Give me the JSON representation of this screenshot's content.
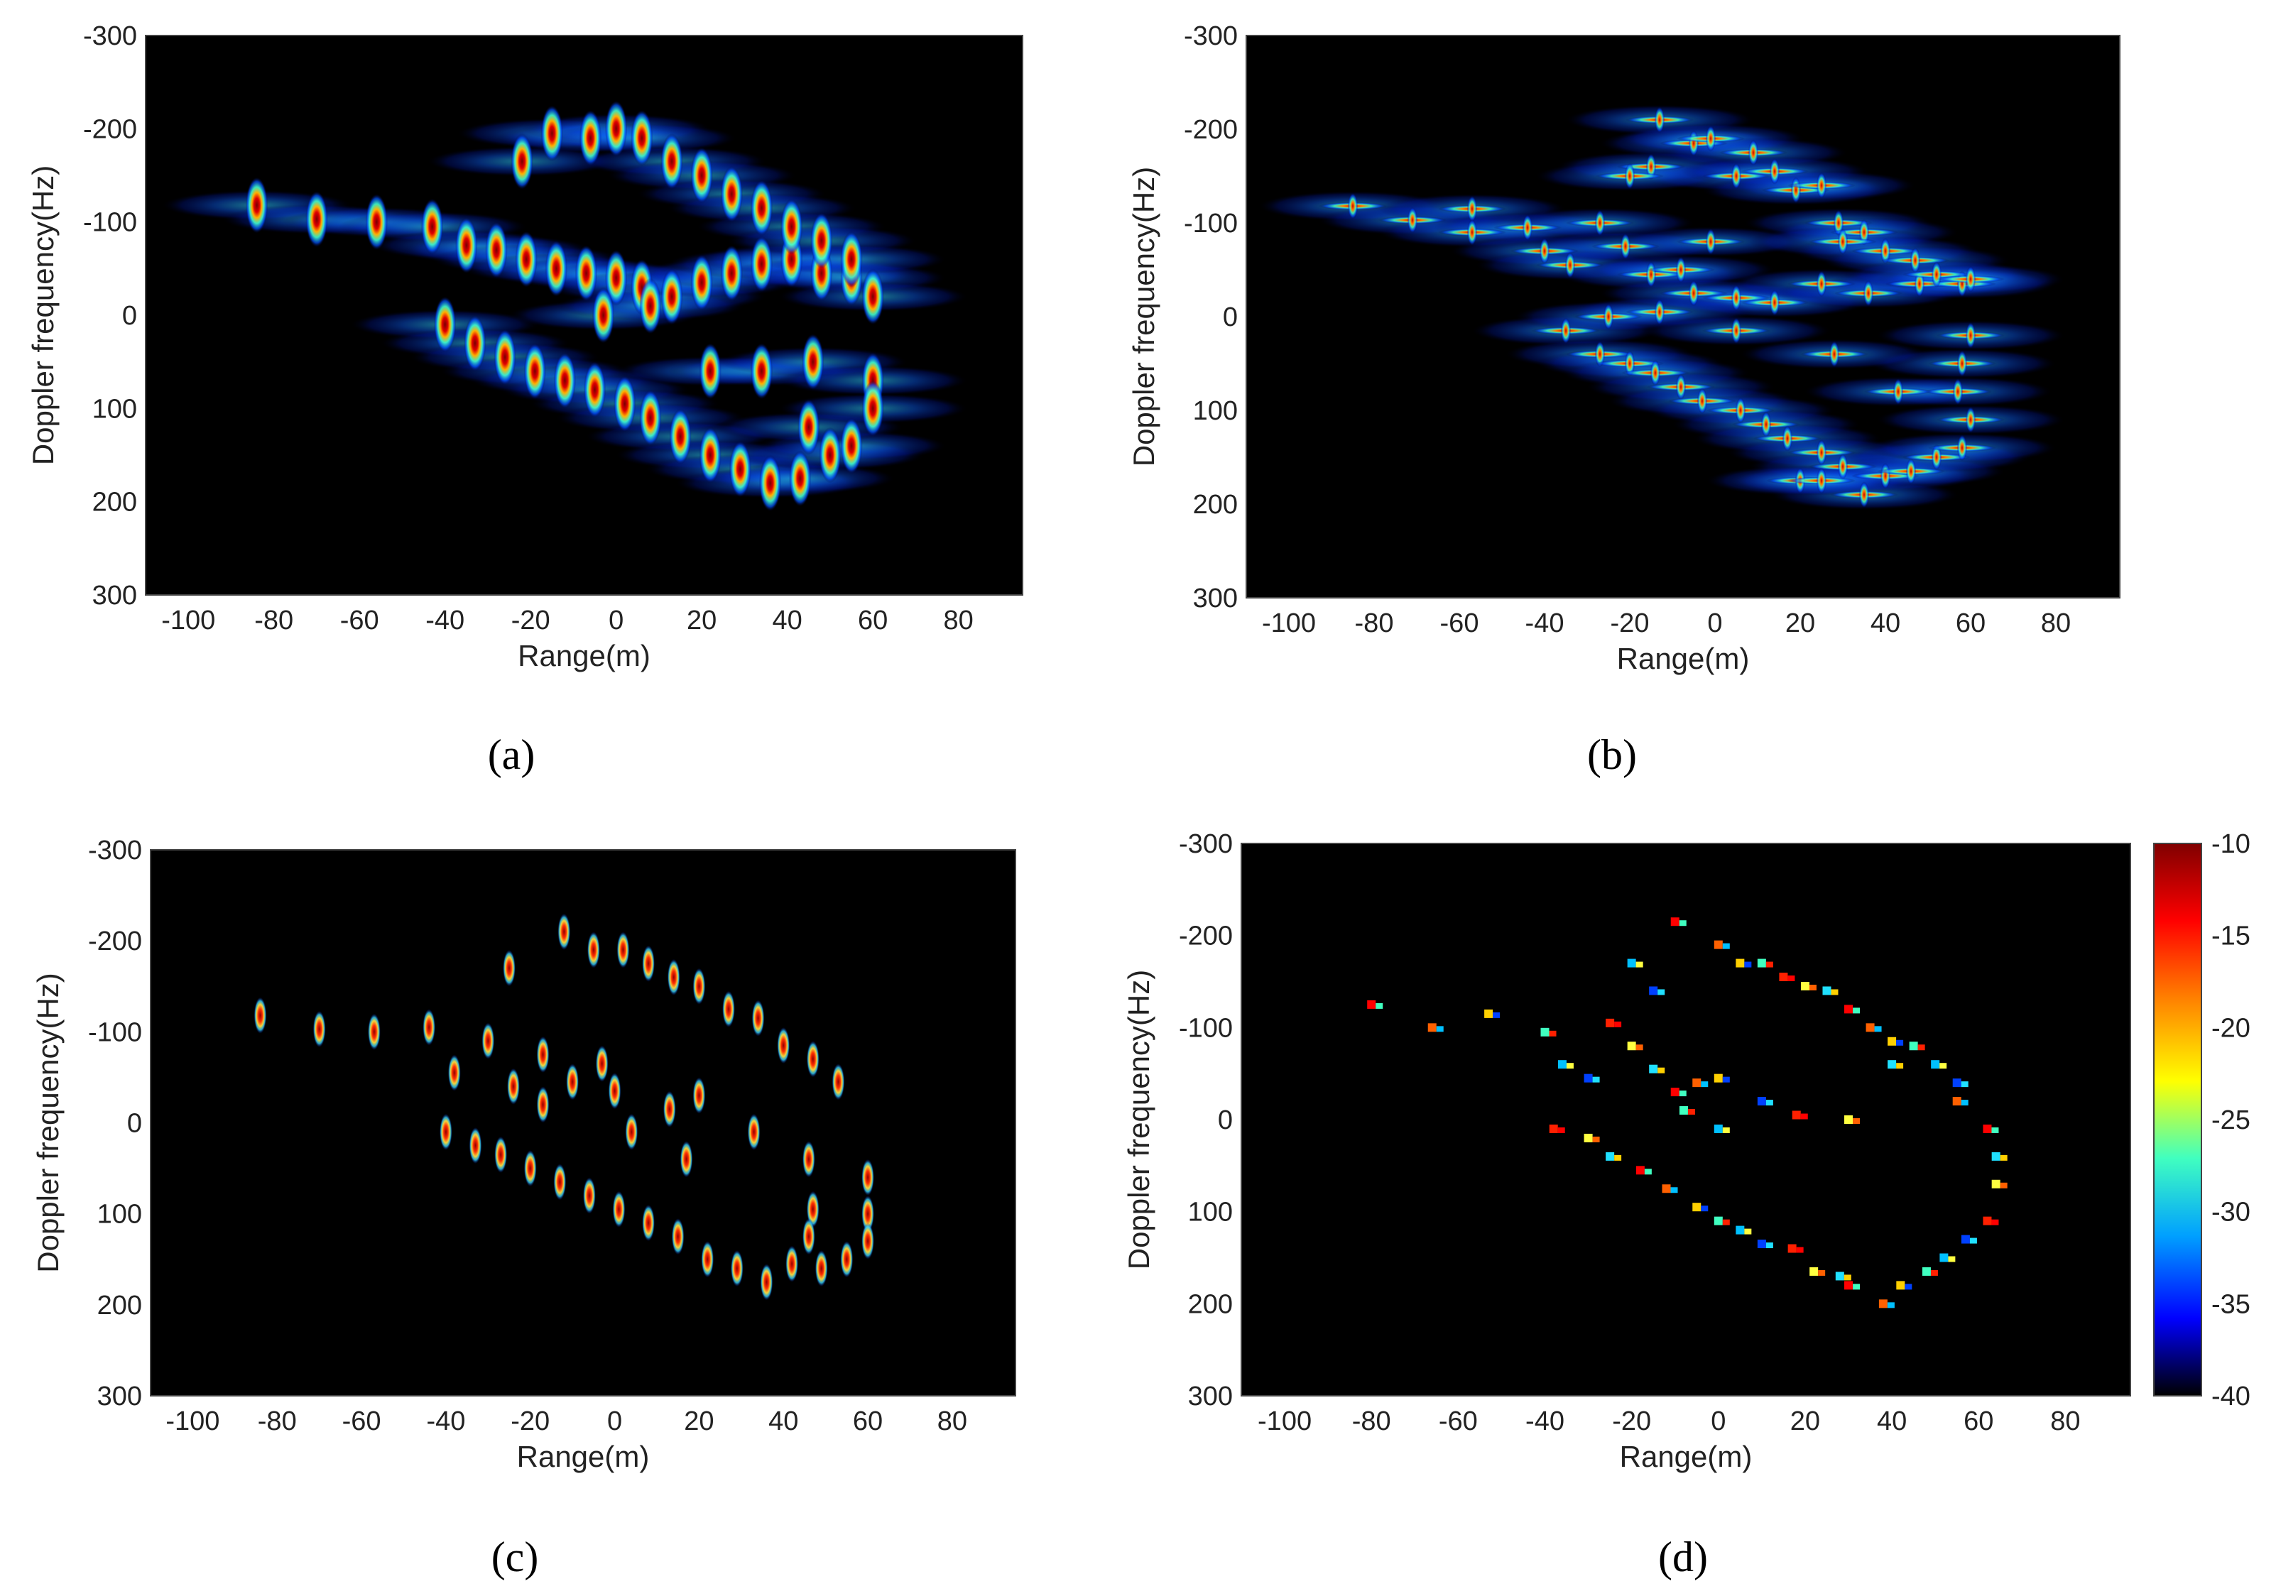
{
  "chart_data": [
    {
      "type": "heatmap",
      "panel_label": "(a)",
      "xlabel": "Range(m)",
      "ylabel": "Doppler frequency(Hz)",
      "xlim": [
        -110,
        95
      ],
      "ylim": [
        -300,
        300
      ],
      "y_reversed": true,
      "x_ticks": [
        -100,
        -80,
        -60,
        -40,
        -20,
        0,
        20,
        40,
        60,
        80
      ],
      "y_ticks": [
        -300,
        -200,
        -100,
        0,
        100,
        200,
        300
      ],
      "render": "broad",
      "points": [
        [
          -84,
          -118
        ],
        [
          -70,
          -103
        ],
        [
          -56,
          -100
        ],
        [
          -43,
          -95
        ],
        [
          -35,
          -75
        ],
        [
          -28,
          -70
        ],
        [
          -21,
          -60
        ],
        [
          -14,
          -50
        ],
        [
          -7,
          -45
        ],
        [
          0,
          -40
        ],
        [
          6,
          -30
        ],
        [
          13,
          -20
        ],
        [
          20,
          -35
        ],
        [
          27,
          -45
        ],
        [
          34,
          -55
        ],
        [
          41,
          -60
        ],
        [
          48,
          -45
        ],
        [
          55,
          -40
        ],
        [
          60,
          -20
        ],
        [
          -22,
          -165
        ],
        [
          -15,
          -195
        ],
        [
          -6,
          -190
        ],
        [
          0,
          -200
        ],
        [
          6,
          -190
        ],
        [
          13,
          -165
        ],
        [
          20,
          -150
        ],
        [
          27,
          -130
        ],
        [
          34,
          -115
        ],
        [
          41,
          -95
        ],
        [
          48,
          -80
        ],
        [
          55,
          -60
        ],
        [
          -40,
          10
        ],
        [
          -33,
          30
        ],
        [
          -26,
          45
        ],
        [
          -19,
          60
        ],
        [
          -12,
          70
        ],
        [
          -5,
          80
        ],
        [
          2,
          95
        ],
        [
          8,
          110
        ],
        [
          15,
          130
        ],
        [
          22,
          150
        ],
        [
          29,
          165
        ],
        [
          36,
          180
        ],
        [
          43,
          175
        ],
        [
          50,
          150
        ],
        [
          55,
          140
        ],
        [
          -3,
          0
        ],
        [
          8,
          -10
        ],
        [
          22,
          60
        ],
        [
          34,
          60
        ],
        [
          46,
          50
        ],
        [
          60,
          70
        ],
        [
          45,
          120
        ],
        [
          60,
          100
        ]
      ]
    },
    {
      "type": "heatmap",
      "panel_label": "(b)",
      "xlabel": "Range(m)",
      "ylabel": "Doppler frequency(Hz)",
      "xlim": [
        -110,
        95
      ],
      "ylim": [
        -300,
        300
      ],
      "y_reversed": true,
      "x_ticks": [
        -100,
        -80,
        -60,
        -40,
        -20,
        0,
        20,
        40,
        60,
        80
      ],
      "y_ticks": [
        -300,
        -200,
        -100,
        0,
        100,
        200,
        300
      ],
      "render": "cross",
      "points": [
        [
          -85,
          -118
        ],
        [
          -71,
          -103
        ],
        [
          -57,
          -115
        ],
        [
          -57,
          -90
        ],
        [
          -44,
          -95
        ],
        [
          -40,
          -70
        ],
        [
          -34,
          -55
        ],
        [
          -27,
          -100
        ],
        [
          -21,
          -75
        ],
        [
          -15,
          -45
        ],
        [
          -8,
          -50
        ],
        [
          -1,
          -80
        ],
        [
          -5,
          -25
        ],
        [
          5,
          -20
        ],
        [
          14,
          -15
        ],
        [
          25,
          -35
        ],
        [
          36,
          -25
        ],
        [
          48,
          -35
        ],
        [
          58,
          -35
        ],
        [
          -13,
          -210
        ],
        [
          -5,
          -185
        ],
        [
          -1,
          -190
        ],
        [
          9,
          -175
        ],
        [
          5,
          -150
        ],
        [
          -15,
          -160
        ],
        [
          -20,
          -150
        ],
        [
          14,
          -155
        ],
        [
          19,
          -135
        ],
        [
          25,
          -140
        ],
        [
          29,
          -100
        ],
        [
          35,
          -90
        ],
        [
          30,
          -80
        ],
        [
          40,
          -70
        ],
        [
          47,
          -60
        ],
        [
          52,
          -45
        ],
        [
          60,
          -40
        ],
        [
          -35,
          15
        ],
        [
          -27,
          40
        ],
        [
          -20,
          50
        ],
        [
          -14,
          60
        ],
        [
          -8,
          75
        ],
        [
          -3,
          90
        ],
        [
          6,
          100
        ],
        [
          12,
          115
        ],
        [
          17,
          130
        ],
        [
          25,
          145
        ],
        [
          30,
          160
        ],
        [
          40,
          170
        ],
        [
          35,
          190
        ],
        [
          46,
          165
        ],
        [
          52,
          150
        ],
        [
          58,
          140
        ],
        [
          60,
          110
        ],
        [
          57,
          80
        ],
        [
          58,
          50
        ],
        [
          60,
          20
        ],
        [
          -25,
          0
        ],
        [
          -13,
          -5
        ],
        [
          5,
          15
        ],
        [
          28,
          40
        ],
        [
          43,
          80
        ],
        [
          20,
          175
        ],
        [
          25,
          175
        ]
      ]
    },
    {
      "type": "heatmap",
      "panel_label": "(c)",
      "xlabel": "Range(m)",
      "ylabel": "Doppler frequency(Hz)",
      "xlim": [
        -110,
        95
      ],
      "ylim": [
        -300,
        300
      ],
      "y_reversed": true,
      "x_ticks": [
        -100,
        -80,
        -60,
        -40,
        -20,
        0,
        20,
        40,
        60,
        80
      ],
      "y_ticks": [
        -300,
        -200,
        -100,
        0,
        100,
        200,
        300
      ],
      "render": "narrow",
      "points": [
        [
          -84,
          -118
        ],
        [
          -70,
          -103
        ],
        [
          -57,
          -100
        ],
        [
          -44,
          -105
        ],
        [
          -38,
          -55
        ],
        [
          -30,
          -90
        ],
        [
          -24,
          -40
        ],
        [
          -17,
          -75
        ],
        [
          -17,
          -20
        ],
        [
          -10,
          -45
        ],
        [
          -3,
          -65
        ],
        [
          0,
          -35
        ],
        [
          4,
          10
        ],
        [
          13,
          -15
        ],
        [
          20,
          -30
        ],
        [
          -25,
          -170
        ],
        [
          -12,
          -210
        ],
        [
          -5,
          -190
        ],
        [
          2,
          -190
        ],
        [
          8,
          -175
        ],
        [
          14,
          -160
        ],
        [
          20,
          -150
        ],
        [
          27,
          -125
        ],
        [
          34,
          -115
        ],
        [
          40,
          -85
        ],
        [
          47,
          -70
        ],
        [
          53,
          -45
        ],
        [
          -40,
          10
        ],
        [
          -33,
          25
        ],
        [
          -27,
          35
        ],
        [
          -20,
          50
        ],
        [
          -13,
          65
        ],
        [
          -6,
          80
        ],
        [
          1,
          95
        ],
        [
          8,
          110
        ],
        [
          15,
          125
        ],
        [
          22,
          150
        ],
        [
          29,
          160
        ],
        [
          36,
          175
        ],
        [
          42,
          155
        ],
        [
          49,
          160
        ],
        [
          55,
          150
        ],
        [
          17,
          40
        ],
        [
          33,
          10
        ],
        [
          46,
          40
        ],
        [
          47,
          95
        ],
        [
          46,
          125
        ],
        [
          60,
          60
        ],
        [
          60,
          100
        ],
        [
          60,
          130
        ]
      ]
    },
    {
      "type": "heatmap",
      "panel_label": "(d)",
      "xlabel": "Range(m)",
      "ylabel": "Doppler frequency(Hz)",
      "xlim": [
        -110,
        95
      ],
      "ylim": [
        -300,
        300
      ],
      "y_reversed": true,
      "x_ticks": [
        -100,
        -80,
        -60,
        -40,
        -20,
        0,
        20,
        40,
        60,
        80
      ],
      "y_ticks": [
        -300,
        -200,
        -100,
        0,
        100,
        200,
        300
      ],
      "render": "sparse",
      "colorbar": {
        "min": -40,
        "max": -10,
        "ticks": [
          -10,
          -15,
          -20,
          -25,
          -30,
          -35,
          -40
        ]
      },
      "points": [
        [
          -80,
          -125
        ],
        [
          -66,
          -100
        ],
        [
          -53,
          -115
        ],
        [
          -40,
          -95
        ],
        [
          -36,
          -60
        ],
        [
          -30,
          -45
        ],
        [
          -25,
          -105
        ],
        [
          -20,
          -80
        ],
        [
          -15,
          -55
        ],
        [
          -10,
          -30
        ],
        [
          -5,
          -40
        ],
        [
          0,
          -45
        ],
        [
          -8,
          -10
        ],
        [
          0,
          10
        ],
        [
          10,
          -20
        ],
        [
          18,
          -5
        ],
        [
          30,
          0
        ],
        [
          40,
          -60
        ],
        [
          -10,
          -215
        ],
        [
          0,
          -190
        ],
        [
          5,
          -170
        ],
        [
          10,
          -170
        ],
        [
          -20,
          -170
        ],
        [
          -15,
          -140
        ],
        [
          15,
          -155
        ],
        [
          20,
          -145
        ],
        [
          25,
          -140
        ],
        [
          30,
          -120
        ],
        [
          35,
          -100
        ],
        [
          40,
          -85
        ],
        [
          45,
          -80
        ],
        [
          50,
          -60
        ],
        [
          55,
          -40
        ],
        [
          -38,
          10
        ],
        [
          -30,
          20
        ],
        [
          -25,
          40
        ],
        [
          -18,
          55
        ],
        [
          -12,
          75
        ],
        [
          -5,
          95
        ],
        [
          0,
          110
        ],
        [
          5,
          120
        ],
        [
          10,
          135
        ],
        [
          17,
          140
        ],
        [
          22,
          165
        ],
        [
          28,
          170
        ],
        [
          30,
          180
        ],
        [
          38,
          200
        ],
        [
          42,
          180
        ],
        [
          48,
          165
        ],
        [
          52,
          150
        ],
        [
          57,
          130
        ],
        [
          62,
          110
        ],
        [
          64,
          70
        ],
        [
          64,
          40
        ],
        [
          62,
          10
        ],
        [
          55,
          -20
        ]
      ]
    }
  ]
}
